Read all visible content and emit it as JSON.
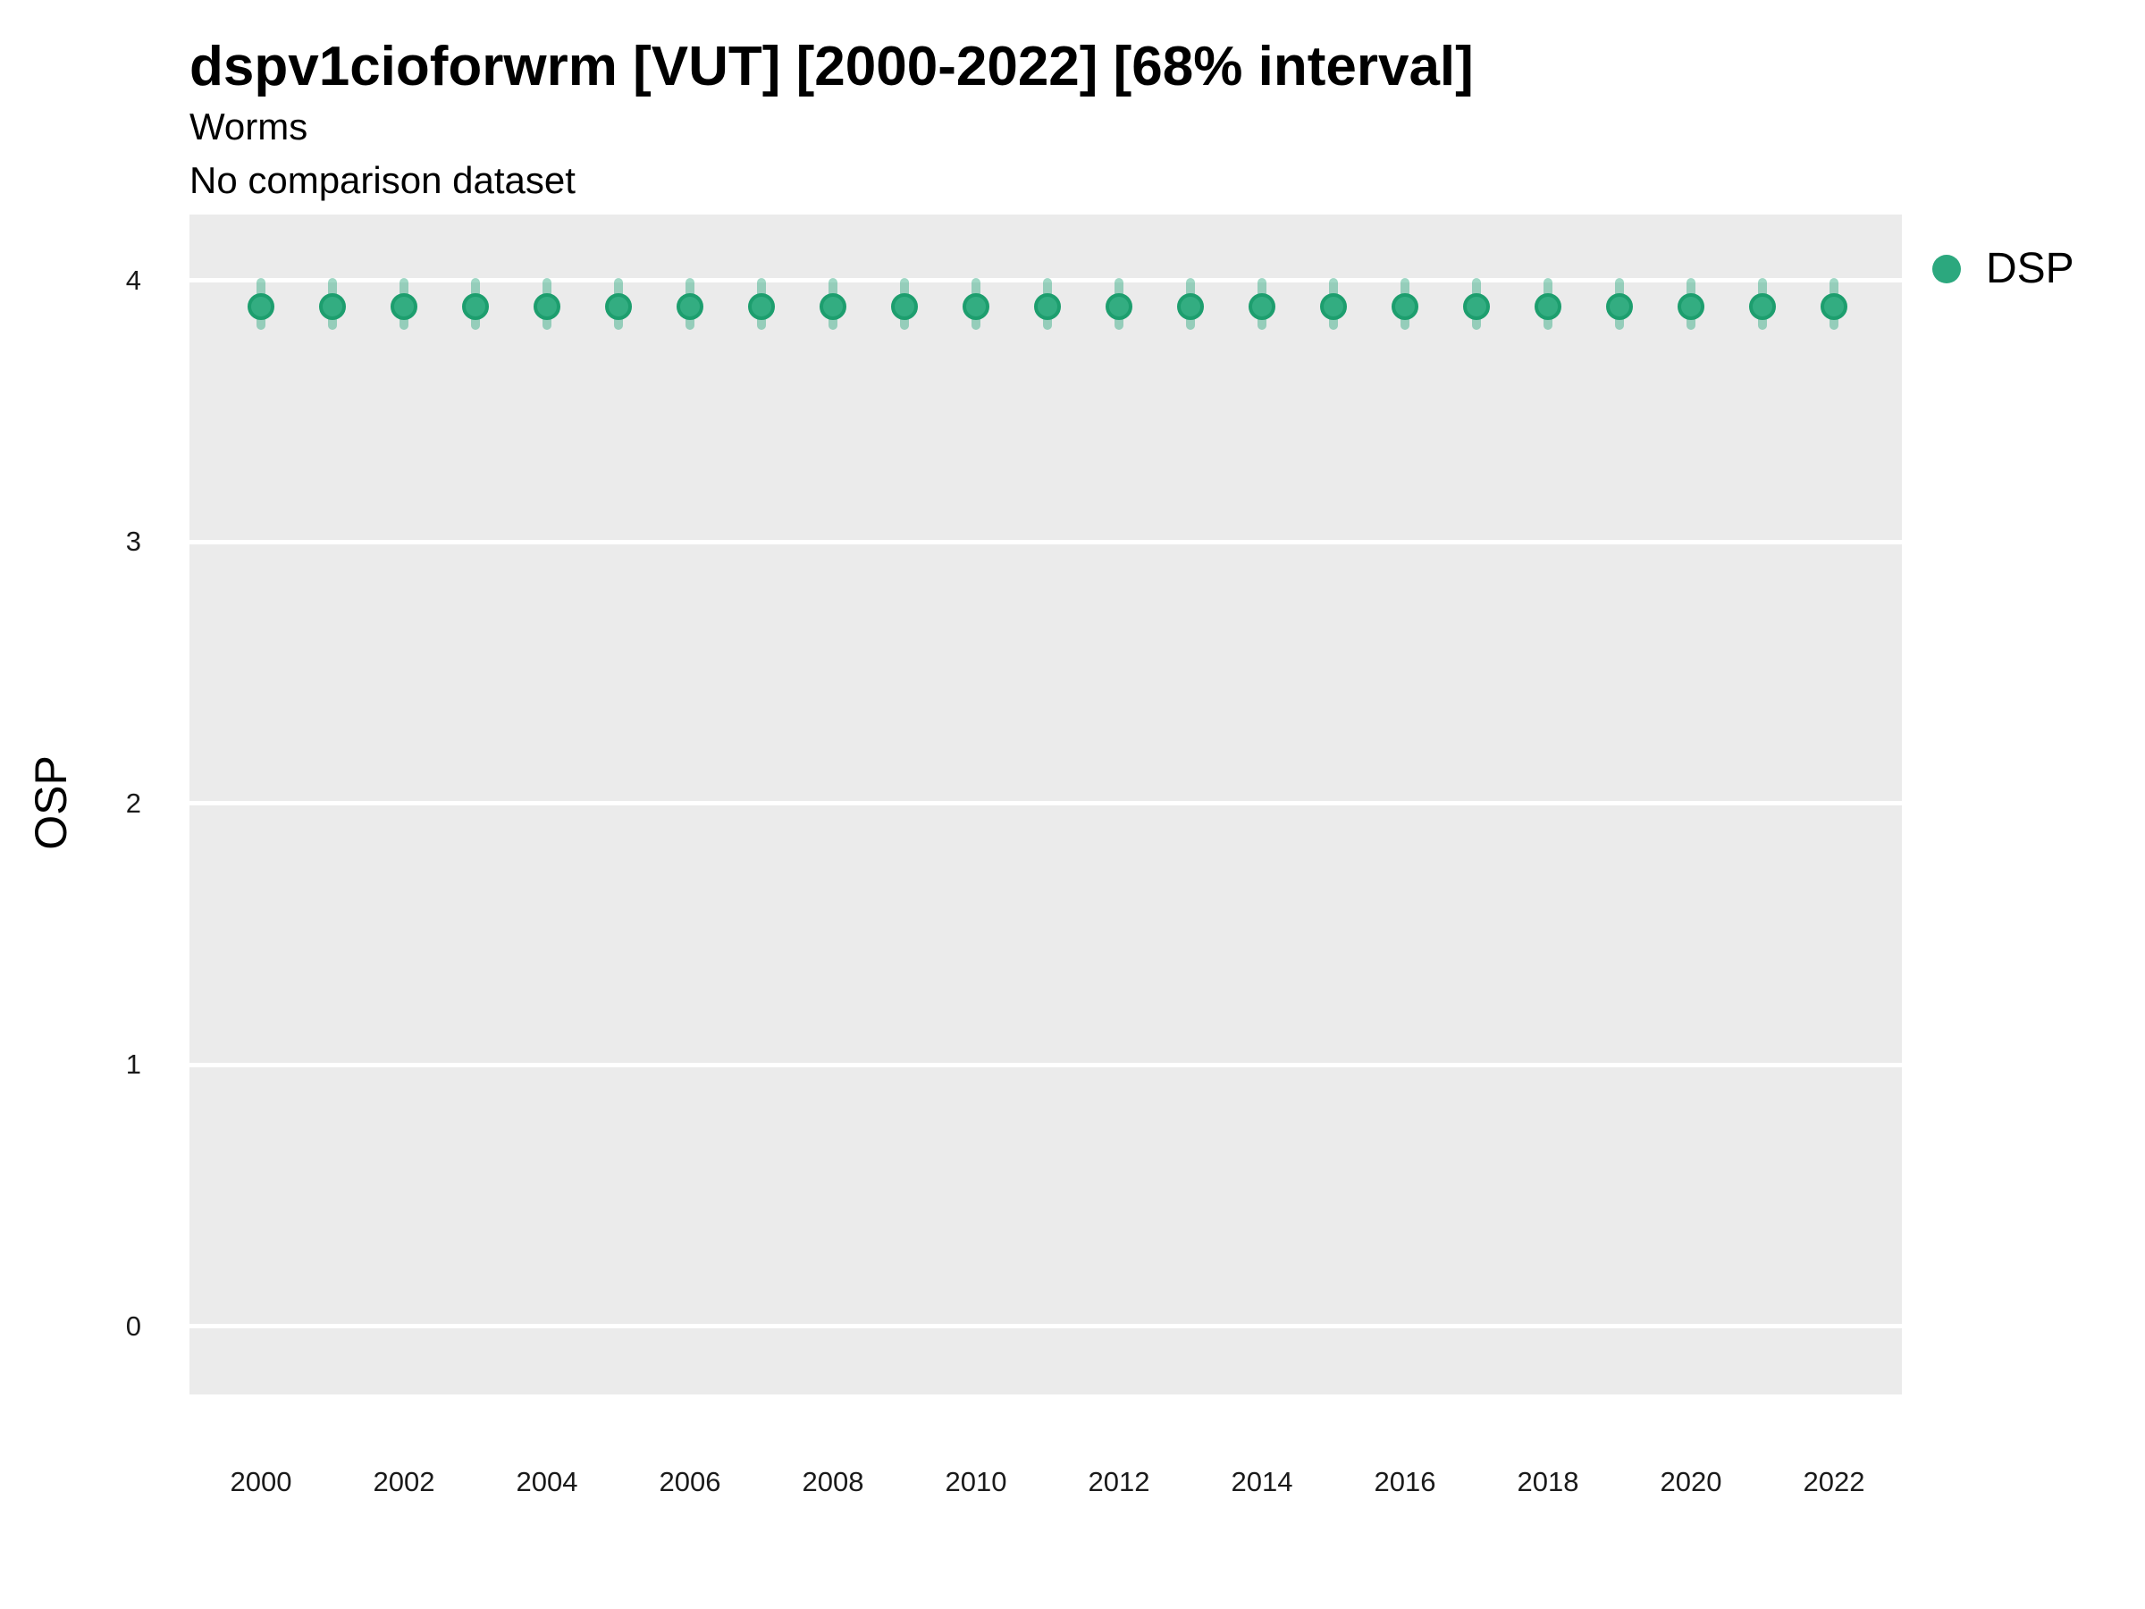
{
  "header": {
    "title": "dspv1cioforwrm [VUT] [2000-2022] [68% interval]",
    "subtitle": "Worms",
    "comparison_note": "No comparison dataset"
  },
  "legend": {
    "position": "right",
    "items": [
      {
        "label": "DSP",
        "marker": "circle-icon",
        "color": "#2CA87E"
      }
    ]
  },
  "chart_data": {
    "type": "scatter",
    "title": "dspv1cioforwrm [VUT] [2000-2022] [68% interval]",
    "subtitle": "Worms",
    "comparison_note": "No comparison dataset",
    "xlabel": "",
    "ylabel": "OSP",
    "x": [
      2000,
      2001,
      2002,
      2003,
      2004,
      2005,
      2006,
      2007,
      2008,
      2009,
      2010,
      2011,
      2012,
      2013,
      2014,
      2015,
      2016,
      2017,
      2018,
      2019,
      2020,
      2021,
      2022
    ],
    "series": [
      {
        "name": "DSP",
        "interval": "68%",
        "values": [
          3.9,
          3.9,
          3.9,
          3.9,
          3.9,
          3.9,
          3.9,
          3.9,
          3.9,
          3.9,
          3.9,
          3.9,
          3.9,
          3.9,
          3.9,
          3.9,
          3.9,
          3.9,
          3.9,
          3.9,
          3.9,
          3.9,
          3.9
        ],
        "interval_low": [
          3.81,
          3.81,
          3.81,
          3.81,
          3.81,
          3.81,
          3.81,
          3.81,
          3.81,
          3.81,
          3.81,
          3.81,
          3.81,
          3.81,
          3.81,
          3.81,
          3.81,
          3.81,
          3.81,
          3.81,
          3.81,
          3.81,
          3.81
        ],
        "interval_high": [
          4.01,
          4.01,
          4.01,
          4.01,
          4.01,
          4.01,
          4.01,
          4.01,
          4.01,
          4.01,
          4.01,
          4.01,
          4.01,
          4.01,
          4.01,
          4.01,
          4.01,
          4.01,
          4.01,
          4.01,
          4.01,
          4.01,
          4.01
        ]
      }
    ],
    "xticks": [
      2000,
      2002,
      2004,
      2006,
      2008,
      2010,
      2012,
      2014,
      2016,
      2018,
      2020,
      2022
    ],
    "yticks": [
      0,
      1,
      2,
      3,
      4
    ],
    "ylim": [
      -0.25,
      4.25
    ],
    "grid": "horizontal-major-only",
    "legend_position": "right",
    "colors": {
      "point_fill": "#33AD81",
      "point_stroke": "#1D9E6E",
      "interval_bar": "rgba(44,168,126,0.45)",
      "panel_background": "#EBEBEB",
      "gridline": "#FFFFFF",
      "legend_dot": "#2CA87E",
      "legend_dot_rim": "rgba(44,168,126,0.5)"
    }
  }
}
